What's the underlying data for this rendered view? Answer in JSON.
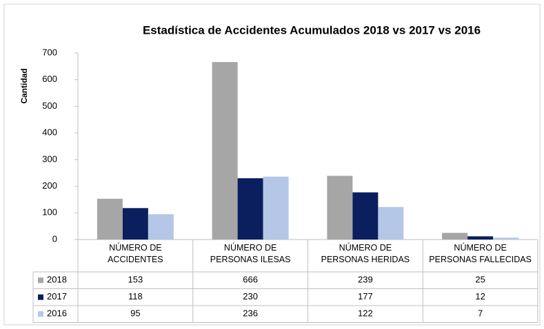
{
  "chart_data": {
    "type": "bar",
    "title": "Estadística de Accidentes Acumulados  2018 vs 2017 vs 2016",
    "y_label": "Cantidad",
    "categories": [
      "NÚMERO DE\nACCIDENTES",
      "NÚMERO DE\nPERSONAS ILESAS",
      "NÚMERO DE\nPERSONAS HERIDAS",
      "NÚMERO DE\nPERSONAS FALLECIDAS"
    ],
    "series": [
      {
        "name": "2018",
        "color": "#a6a6a6",
        "values": [
          153,
          666,
          239,
          25
        ]
      },
      {
        "name": "2017",
        "color": "#0b1f5e",
        "values": [
          118,
          230,
          177,
          12
        ]
      },
      {
        "name": "2016",
        "color": "#b4c7e7",
        "values": [
          95,
          236,
          122,
          7
        ]
      }
    ],
    "ylim": [
      0,
      700
    ],
    "yticks": [
      0,
      100,
      200,
      300,
      400,
      500,
      600,
      700
    ],
    "grid": false
  }
}
